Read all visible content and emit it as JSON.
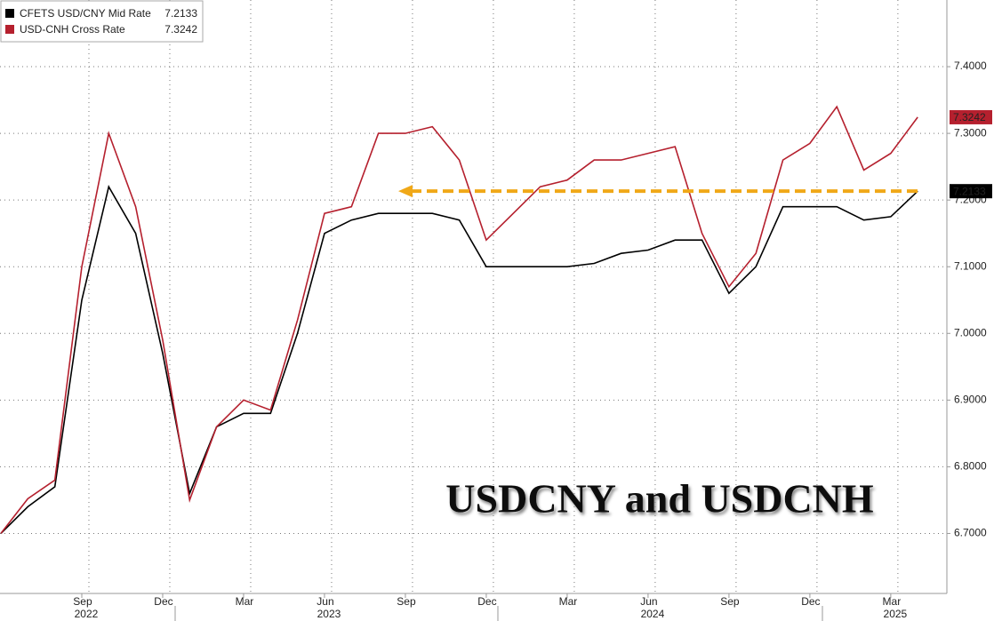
{
  "chart_data": {
    "type": "line",
    "title": "USDCNY and USDCNH",
    "x": [
      "2022-06",
      "2022-07",
      "2022-08",
      "2022-09",
      "2022-10",
      "2022-11",
      "2022-12",
      "2023-01",
      "2023-02",
      "2023-03",
      "2023-04",
      "2023-05",
      "2023-06",
      "2023-07",
      "2023-08",
      "2023-09",
      "2023-10",
      "2023-11",
      "2023-12",
      "2024-01",
      "2024-02",
      "2024-03",
      "2024-04",
      "2024-05",
      "2024-06",
      "2024-07",
      "2024-08",
      "2024-09",
      "2024-10",
      "2024-11",
      "2024-12",
      "2025-01",
      "2025-02",
      "2025-03",
      "2025-04"
    ],
    "series": [
      {
        "name": "CFETS USD/CNY Mid Rate",
        "color": "#000000",
        "values": [
          6.7,
          6.74,
          6.77,
          7.05,
          7.22,
          7.15,
          6.97,
          6.76,
          6.86,
          6.88,
          6.88,
          7.0,
          7.15,
          7.17,
          7.18,
          7.18,
          7.18,
          7.17,
          7.1,
          7.1,
          7.1,
          7.1,
          7.105,
          7.12,
          7.125,
          7.14,
          7.14,
          7.06,
          7.1,
          7.19,
          7.19,
          7.19,
          7.17,
          7.175,
          7.2133
        ]
      },
      {
        "name": "USD-CNH Cross Rate",
        "color": "#b5202e",
        "values": [
          6.7,
          6.752,
          6.78,
          7.1,
          7.3,
          7.19,
          6.99,
          6.75,
          6.86,
          6.9,
          6.885,
          7.02,
          7.18,
          7.19,
          7.3,
          7.3,
          7.31,
          7.26,
          7.14,
          7.18,
          7.22,
          7.23,
          7.26,
          7.26,
          7.27,
          7.28,
          7.15,
          7.07,
          7.12,
          7.26,
          7.285,
          7.34,
          7.245,
          7.27,
          7.3242
        ]
      }
    ],
    "ylim": [
      6.61,
      7.5
    ],
    "yticks": [
      {
        "value": 6.7,
        "label": "6.7000"
      },
      {
        "value": 6.8,
        "label": "6.8000"
      },
      {
        "value": 6.9,
        "label": "6.9000"
      },
      {
        "value": 7.0,
        "label": "7.0000"
      },
      {
        "value": 7.1,
        "label": "7.1000"
      },
      {
        "value": 7.2,
        "label": "7.2000"
      },
      {
        "value": 7.3,
        "label": "7.3000"
      },
      {
        "value": 7.4,
        "label": "7.4000"
      }
    ],
    "xticks": [
      {
        "value": "2022-09",
        "label": "Sep"
      },
      {
        "value": "2022-12",
        "label": "Dec"
      },
      {
        "value": "2023-03",
        "label": "Mar"
      },
      {
        "value": "2023-06",
        "label": "Jun"
      },
      {
        "value": "2023-09",
        "label": "Sep"
      },
      {
        "value": "2023-12",
        "label": "Dec"
      },
      {
        "value": "2024-03",
        "label": "Mar"
      },
      {
        "value": "2024-06",
        "label": "Jun"
      },
      {
        "value": "2024-09",
        "label": "Sep"
      },
      {
        "value": "2024-12",
        "label": "Dec"
      },
      {
        "value": "2025-03",
        "label": "Mar"
      }
    ],
    "year_ticks": [
      {
        "value": "2022-09",
        "label": "2022"
      },
      {
        "value": "2023-06",
        "label": "2023"
      },
      {
        "value": "2024-06",
        "label": "2024"
      },
      {
        "value": "2025-03",
        "label": "2025"
      }
    ],
    "grid": true,
    "legend": "top-left",
    "arrow_color": "#f0a818"
  }
}
